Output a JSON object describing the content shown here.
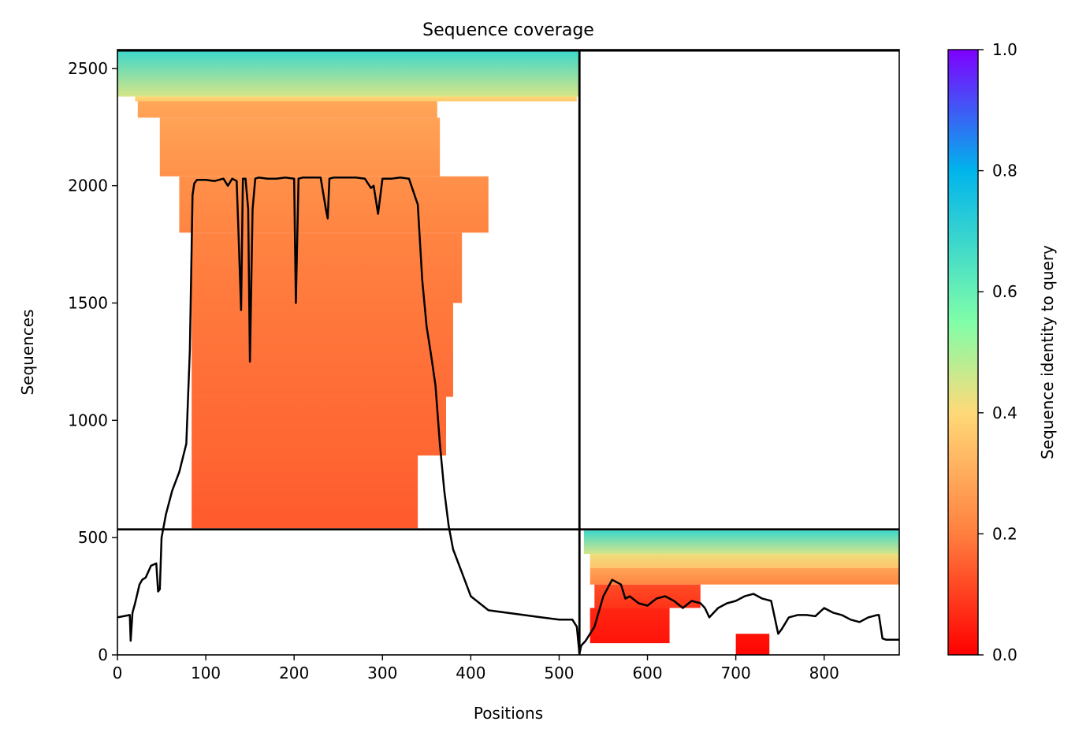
{
  "chart_data": {
    "type": "heatmap",
    "title": "Sequence coverage",
    "xlabel": "Positions",
    "ylabel": "Sequences",
    "xlim": [
      0,
      885
    ],
    "ylim": [
      0,
      2580
    ],
    "x_ticks": [
      0,
      100,
      200,
      300,
      400,
      500,
      600,
      700,
      800
    ],
    "y_ticks": [
      0,
      500,
      1000,
      1500,
      2000,
      2500
    ],
    "grid": false,
    "colorbar": {
      "label": "Sequence identity to query",
      "range": [
        0.0,
        1.0
      ],
      "ticks": [
        "0.0",
        "0.2",
        "0.4",
        "0.6",
        "0.8",
        "1.0"
      ],
      "colormap": "rainbow_r",
      "colors": [
        "#ff0000",
        "#ff7f3f",
        "#ffd978",
        "#80fea8",
        "#00b4ec",
        "#7f00ff"
      ]
    },
    "domain_boundaries": {
      "x": 523,
      "y": 535
    },
    "coverage_blocks": [
      {
        "x0": 0,
        "x1": 523,
        "y0": 2380,
        "y1": 2575,
        "id0": 0.45,
        "id1": 0.68
      },
      {
        "x0": 20,
        "x1": 520,
        "y0": 2360,
        "y1": 2380,
        "id0": 0.36,
        "id1": 0.4
      },
      {
        "x0": 23,
        "x1": 362,
        "y0": 2290,
        "y1": 2360,
        "id0": 0.27,
        "id1": 0.29
      },
      {
        "x0": 48,
        "x1": 365,
        "y0": 2040,
        "y1": 2290,
        "id0": 0.24,
        "id1": 0.28
      },
      {
        "x0": 70,
        "x1": 420,
        "y0": 1800,
        "y1": 2040,
        "id0": 0.21,
        "id1": 0.24
      },
      {
        "x0": 84,
        "x1": 390,
        "y0": 1500,
        "y1": 1800,
        "id0": 0.19,
        "id1": 0.21
      },
      {
        "x0": 84,
        "x1": 380,
        "y0": 1100,
        "y1": 1500,
        "id0": 0.17,
        "id1": 0.19
      },
      {
        "x0": 84,
        "x1": 372,
        "y0": 850,
        "y1": 1100,
        "id0": 0.16,
        "id1": 0.17
      },
      {
        "x0": 84,
        "x1": 340,
        "y0": 540,
        "y1": 850,
        "id0": 0.14,
        "id1": 0.16
      },
      {
        "x0": 528,
        "x1": 885,
        "y0": 430,
        "y1": 530,
        "id0": 0.45,
        "id1": 0.68
      },
      {
        "x0": 535,
        "x1": 885,
        "y0": 370,
        "y1": 430,
        "id0": 0.35,
        "id1": 0.42
      },
      {
        "x0": 535,
        "x1": 885,
        "y0": 300,
        "y1": 370,
        "id0": 0.22,
        "id1": 0.28
      },
      {
        "x0": 540,
        "x1": 660,
        "y0": 200,
        "y1": 300,
        "id0": 0.08,
        "id1": 0.12
      },
      {
        "x0": 535,
        "x1": 625,
        "y0": 50,
        "y1": 200,
        "id0": 0.03,
        "id1": 0.06
      },
      {
        "x0": 700,
        "x1": 738,
        "y0": 0,
        "y1": 90,
        "id0": 0.01,
        "id1": 0.03
      }
    ],
    "coverage_line": {
      "x": [
        0,
        14,
        15,
        17,
        20,
        25,
        28,
        32,
        38,
        44,
        46,
        48,
        50,
        55,
        62,
        70,
        78,
        82,
        85,
        87,
        90,
        100,
        110,
        120,
        125,
        130,
        135,
        137,
        140,
        142,
        145,
        148,
        150,
        153,
        156,
        160,
        170,
        180,
        190,
        200,
        202,
        205,
        210,
        220,
        230,
        236,
        238,
        240,
        245,
        250,
        260,
        270,
        280,
        287,
        290,
        295,
        300,
        305,
        310,
        320,
        330,
        340,
        345,
        350,
        355,
        360,
        365,
        370,
        375,
        380,
        390,
        400,
        420,
        440,
        460,
        480,
        500,
        515,
        520,
        523,
        525,
        530,
        540,
        550,
        560,
        570,
        575,
        580,
        590,
        600,
        610,
        620,
        630,
        640,
        650,
        660,
        665,
        670,
        680,
        690,
        700,
        710,
        720,
        730,
        740,
        748,
        752,
        760,
        770,
        780,
        790,
        800,
        810,
        820,
        830,
        840,
        850,
        860,
        862,
        866,
        870,
        885
      ],
      "y": [
        160,
        170,
        60,
        180,
        220,
        300,
        320,
        330,
        380,
        390,
        270,
        280,
        500,
        600,
        700,
        780,
        900,
        1300,
        1960,
        2010,
        2025,
        2025,
        2020,
        2030,
        2000,
        2030,
        2020,
        1800,
        1470,
        2030,
        2030,
        1900,
        1250,
        1900,
        2030,
        2035,
        2030,
        2030,
        2035,
        2030,
        1500,
        2030,
        2035,
        2035,
        2035,
        1900,
        1860,
        2030,
        2035,
        2035,
        2035,
        2035,
        2030,
        1990,
        2000,
        1880,
        2030,
        2030,
        2030,
        2035,
        2030,
        1920,
        1600,
        1400,
        1280,
        1150,
        900,
        700,
        550,
        450,
        350,
        250,
        190,
        180,
        170,
        160,
        150,
        150,
        120,
        5,
        40,
        60,
        120,
        250,
        320,
        300,
        240,
        250,
        220,
        210,
        240,
        250,
        230,
        200,
        230,
        220,
        200,
        160,
        200,
        220,
        230,
        250,
        260,
        240,
        230,
        90,
        110,
        160,
        170,
        170,
        165,
        200,
        180,
        170,
        150,
        140,
        160,
        170,
        170,
        70,
        65,
        65
      ]
    }
  }
}
